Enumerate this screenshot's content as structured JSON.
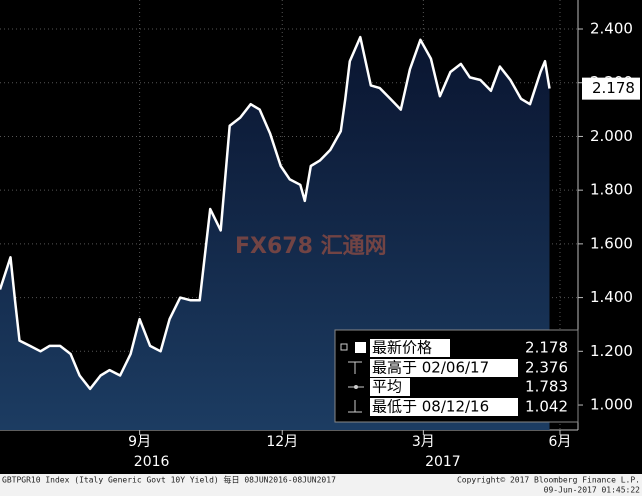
{
  "chart_data": {
    "type": "area",
    "watermark": "FX678 汇通网",
    "x": [
      0,
      7,
      10,
      13,
      20,
      27,
      33,
      40,
      47,
      53,
      60,
      67,
      73,
      80,
      87,
      93,
      100,
      107,
      113,
      120,
      127,
      133,
      140,
      147,
      153,
      160,
      167,
      173,
      180,
      187,
      193,
      200,
      203,
      207,
      213,
      220,
      227,
      230,
      233,
      240,
      247,
      253,
      260,
      267,
      273,
      280,
      287,
      293,
      300,
      307,
      313,
      320,
      327,
      333,
      340,
      347,
      353,
      360,
      363,
      366
    ],
    "series": [
      {
        "name": "GBTPGR10 Index",
        "color": "#ffffff",
        "values": [
          1.43,
          1.55,
          1.39,
          1.24,
          1.22,
          1.2,
          1.22,
          1.22,
          1.19,
          1.11,
          1.06,
          1.11,
          1.13,
          1.11,
          1.19,
          1.32,
          1.22,
          1.2,
          1.32,
          1.4,
          1.39,
          1.39,
          1.73,
          1.65,
          2.04,
          2.07,
          2.12,
          2.1,
          2.01,
          1.89,
          1.84,
          1.82,
          1.76,
          1.89,
          1.91,
          1.95,
          2.02,
          2.14,
          2.28,
          2.37,
          2.19,
          2.18,
          2.14,
          2.1,
          2.25,
          2.36,
          2.29,
          2.15,
          2.24,
          2.27,
          2.22,
          2.21,
          2.17,
          2.26,
          2.21,
          2.14,
          2.12,
          2.24,
          2.28,
          2.178
        ]
      }
    ],
    "xlim": [
      0,
      385
    ],
    "xticks": [
      {
        "value": 93,
        "label": "9月"
      },
      {
        "value": 188,
        "label": "12月"
      },
      {
        "value": 282,
        "label": "3月"
      },
      {
        "value": 373,
        "label": "6月"
      }
    ],
    "years": [
      {
        "value": 101,
        "label": "2016"
      },
      {
        "value": 295,
        "label": "2017"
      }
    ],
    "ylim": [
      0.907,
      2.508
    ],
    "yticks": [
      {
        "value": 1.0,
        "label": "1.000"
      },
      {
        "value": 1.2,
        "label": "1.200"
      },
      {
        "value": 1.4,
        "label": "1.400"
      },
      {
        "value": 1.6,
        "label": "1.600"
      },
      {
        "value": 1.8,
        "label": "1.800"
      },
      {
        "value": 2.0,
        "label": "2.000"
      },
      {
        "value": 2.2,
        "label": "2.200"
      },
      {
        "value": 2.4,
        "label": "2.400"
      }
    ],
    "grid": true,
    "last_value": 2.178,
    "legend": [
      {
        "label": "最新价格",
        "value": 2.178
      },
      {
        "label": "最高于 02/06/17",
        "value": 2.376
      },
      {
        "label": "平均",
        "value": 1.783
      },
      {
        "label": "最低于 08/12/16",
        "value": 1.042
      }
    ],
    "footer": {
      "left": "GBTPGR10 Index (Italy Generic Govt 10Y Yield)  每日 08JUN2016-08JUN2017",
      "copyright": "Copyright© 2017 Bloomberg Finance L.P.",
      "timestamp": "09-Jun-2017 01:45:22"
    }
  }
}
